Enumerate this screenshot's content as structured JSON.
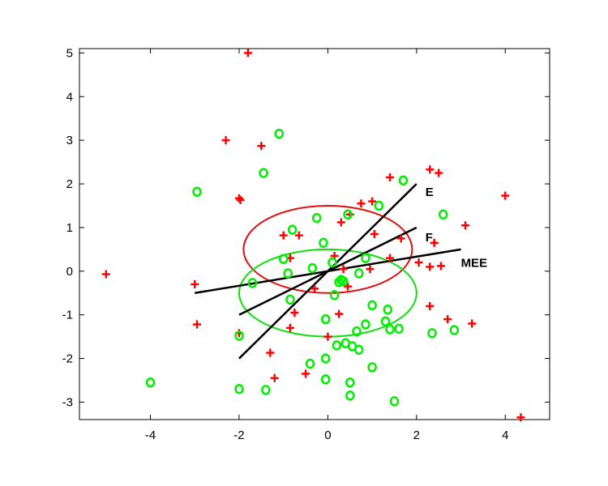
{
  "chart_data": {
    "type": "scatter",
    "xlim": [
      -5.6,
      5
    ],
    "ylim": [
      -3.4,
      5.1
    ],
    "xticks": [
      -4,
      -2,
      0,
      2,
      4
    ],
    "yticks": [
      -3,
      -2,
      -1,
      0,
      1,
      2,
      3,
      4,
      5
    ],
    "xtick_labels": [
      "-4",
      "-2",
      "0",
      "2",
      "4"
    ],
    "ytick_labels": [
      "-3",
      "-2",
      "-1",
      "0",
      "1",
      "2",
      "3",
      "4",
      "5"
    ],
    "grid": false,
    "colors": {
      "plus": "#ff0000",
      "circle": "#00ee00",
      "line": "#000000",
      "red_ellipse": "#dd1111",
      "green_ellipse": "#11dd11"
    },
    "series": [
      {
        "marker": "plus",
        "points": [
          [
            -1.8,
            5.0
          ],
          [
            -2.3,
            3.0
          ],
          [
            -1.5,
            2.87
          ],
          [
            -2.0,
            1.67
          ],
          [
            -1.97,
            1.63
          ],
          [
            1.4,
            2.15
          ],
          [
            2.3,
            2.33
          ],
          [
            2.5,
            2.25
          ],
          [
            4.0,
            1.73
          ],
          [
            1.0,
            1.6
          ],
          [
            0.75,
            1.55
          ],
          [
            0.5,
            1.3
          ],
          [
            0.3,
            1.12
          ],
          [
            3.1,
            1.05
          ],
          [
            -1.0,
            0.82
          ],
          [
            -0.65,
            0.82
          ],
          [
            1.05,
            0.85
          ],
          [
            1.65,
            0.75
          ],
          [
            2.4,
            0.65
          ],
          [
            0.15,
            0.35
          ],
          [
            -0.85,
            0.3
          ],
          [
            1.4,
            0.3
          ],
          [
            2.05,
            0.2
          ],
          [
            2.3,
            0.1
          ],
          [
            2.55,
            0.12
          ],
          [
            0.35,
            0.05
          ],
          [
            0.95,
            0.05
          ],
          [
            -3.0,
            -0.3
          ],
          [
            -5.0,
            -0.07
          ],
          [
            -0.3,
            -0.4
          ],
          [
            0.45,
            -0.35
          ],
          [
            2.3,
            -0.8
          ],
          [
            -0.75,
            -0.95
          ],
          [
            0.25,
            -0.98
          ],
          [
            2.7,
            -1.1
          ],
          [
            3.25,
            -1.2
          ],
          [
            -2.95,
            -1.22
          ],
          [
            -0.85,
            -1.3
          ],
          [
            -2.0,
            -1.42
          ],
          [
            0.0,
            -1.5
          ],
          [
            -1.3,
            -1.87
          ],
          [
            -1.2,
            -2.45
          ],
          [
            -0.5,
            -2.35
          ],
          [
            4.35,
            -3.35
          ]
        ]
      },
      {
        "marker": "circle",
        "points": [
          [
            -1.1,
            3.15
          ],
          [
            -1.45,
            2.25
          ],
          [
            -2.95,
            1.82
          ],
          [
            1.7,
            2.08
          ],
          [
            1.15,
            1.5
          ],
          [
            0.45,
            1.3
          ],
          [
            -0.25,
            1.22
          ],
          [
            2.6,
            1.3
          ],
          [
            -0.8,
            0.95
          ],
          [
            -0.1,
            0.65
          ],
          [
            -1.0,
            0.28
          ],
          [
            -0.35,
            0.07
          ],
          [
            0.1,
            0.2
          ],
          [
            0.85,
            0.3
          ],
          [
            -0.9,
            -0.05
          ],
          [
            -1.7,
            -0.27
          ],
          [
            0.3,
            -0.2
          ],
          [
            0.35,
            -0.23
          ],
          [
            0.25,
            -0.25
          ],
          [
            0.7,
            -0.05
          ],
          [
            0.15,
            -0.55
          ],
          [
            -0.85,
            -0.65
          ],
          [
            1.0,
            -0.78
          ],
          [
            1.35,
            -0.88
          ],
          [
            -0.05,
            -1.1
          ],
          [
            0.85,
            -1.22
          ],
          [
            1.3,
            -1.15
          ],
          [
            0.65,
            -1.38
          ],
          [
            1.4,
            -1.33
          ],
          [
            1.6,
            -1.32
          ],
          [
            2.35,
            -1.42
          ],
          [
            2.85,
            -1.35
          ],
          [
            -2.0,
            -1.48
          ],
          [
            0.2,
            -1.7
          ],
          [
            0.4,
            -1.65
          ],
          [
            0.55,
            -1.72
          ],
          [
            0.7,
            -1.8
          ],
          [
            -0.05,
            -2.0
          ],
          [
            1.0,
            -2.2
          ],
          [
            -0.4,
            -2.12
          ],
          [
            -4.0,
            -2.55
          ],
          [
            -0.05,
            -2.48
          ],
          [
            0.5,
            -2.55
          ],
          [
            -2.0,
            -2.7
          ],
          [
            -1.4,
            -2.72
          ],
          [
            0.5,
            -2.85
          ],
          [
            1.5,
            -2.98
          ]
        ]
      }
    ],
    "lines": [
      {
        "label": "E",
        "from": [
          -2.0,
          -2.0
        ],
        "to": [
          2.0,
          2.0
        ],
        "label_at": [
          2.2,
          1.72
        ]
      },
      {
        "label": "F",
        "from": [
          -2.0,
          -1.0
        ],
        "to": [
          2.0,
          1.0
        ],
        "label_at": [
          2.2,
          0.68
        ]
      },
      {
        "label": "MEE",
        "from": [
          -3.0,
          -0.5
        ],
        "to": [
          3.0,
          0.5
        ],
        "label_at": [
          3.0,
          0.1
        ]
      }
    ],
    "ellipses": [
      {
        "color_key": "red_ellipse",
        "center": [
          0.0,
          0.5
        ],
        "rx": 1.9,
        "ry": 1.0
      },
      {
        "color_key": "green_ellipse",
        "center": [
          0.0,
          -0.5
        ],
        "rx": 2.0,
        "ry": 1.0
      }
    ]
  }
}
